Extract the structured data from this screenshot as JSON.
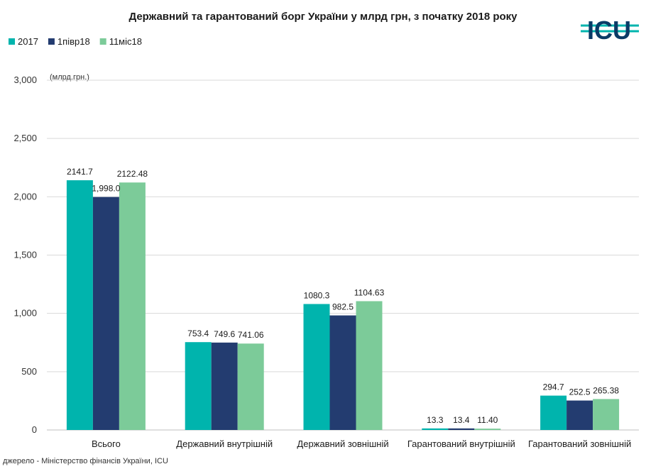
{
  "chart_data": {
    "type": "bar",
    "title": "Державний та гарантований борг України у млрд грн, з початку 2018 року",
    "unit_label": "(млрд.грн.)",
    "categories": [
      "Всього",
      "Державний внутрішній",
      "Державний зовнішній",
      "Гарантований внутрішній",
      "Гарантований зовнішній"
    ],
    "series": [
      {
        "name": "2017",
        "color": "#00b4ad",
        "values": [
          2141.7,
          753.4,
          1080.3,
          13.3,
          294.7
        ],
        "labels": [
          "2141.7",
          "753.4",
          "1080.3",
          "13.3",
          "294.7"
        ]
      },
      {
        "name": "1півр18",
        "color": "#233c70",
        "values": [
          1998.0,
          749.6,
          982.5,
          13.4,
          252.5
        ],
        "labels": [
          "1,998.0",
          "749.6",
          "982.5",
          "13.4",
          "252.5"
        ]
      },
      {
        "name": "11міс18",
        "color": "#7ccb99",
        "values": [
          2122.48,
          741.06,
          1104.63,
          11.4,
          265.38
        ],
        "labels": [
          "2122.48",
          "741.06",
          "1104.63",
          "11.40",
          "265.38"
        ]
      }
    ],
    "ylim": [
      0,
      3000
    ],
    "yticks": [
      0,
      500,
      1000,
      1500,
      2000,
      2500,
      3000
    ],
    "ytick_labels": [
      "0",
      "500",
      "1,000",
      "1,500",
      "2,000",
      "2,500",
      "3,000"
    ],
    "grid": true,
    "legend_position": "top-left"
  },
  "source": "джерело - Міністерство фінансів України, ICU",
  "logo": {
    "text": "ICU",
    "color": "#0a3b66",
    "accent": "#00b4ad"
  }
}
